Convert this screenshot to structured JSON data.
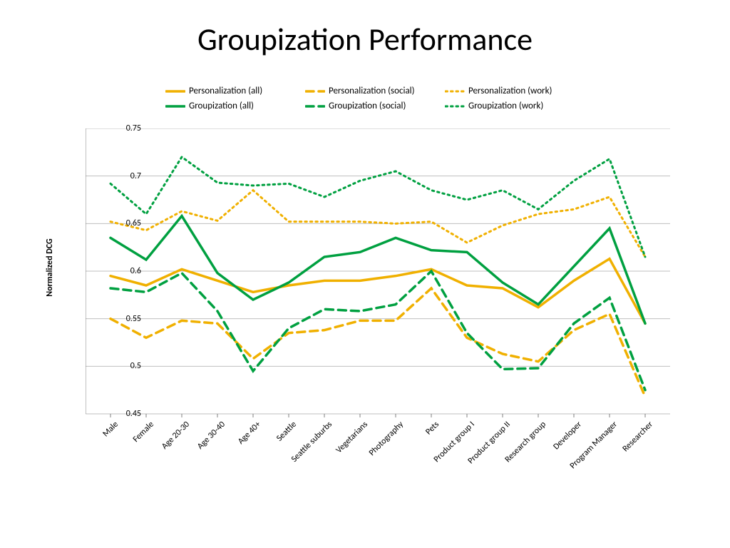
{
  "title": "Groupization Performance",
  "chart": {
    "type": "line",
    "ylabel": "Normalized DCG",
    "ylim": [
      0.45,
      0.75
    ],
    "ytick_step": 0.05,
    "yticks": [
      0.45,
      0.5,
      0.55,
      0.6,
      0.65,
      0.7,
      0.75
    ],
    "categories": [
      "Male",
      "Female",
      "Age 20-30",
      "Age 30-40",
      "Age 40+",
      "Seattle",
      "Seattle suburbs",
      "Vegetarians",
      "Photography",
      "Pets",
      "Product group I",
      "Product group II",
      "Research group",
      "Developer",
      "Program Manager",
      "Researcher"
    ],
    "background_color": "#ffffff",
    "grid_color": "#bfbfbf",
    "axis_color": "#808080",
    "label_fontsize": 12,
    "title_fontsize": 44,
    "legend_fontsize": 13,
    "series": [
      {
        "name": "Personalization (all)",
        "color": "#f0b000",
        "dash": "solid",
        "width": 3.5,
        "values": [
          0.595,
          0.585,
          0.602,
          0.59,
          0.578,
          0.585,
          0.59,
          0.59,
          0.595,
          0.602,
          0.585,
          0.582,
          0.562,
          0.59,
          0.613,
          0.545
        ]
      },
      {
        "name": "Personalization (social)",
        "color": "#f0b000",
        "dash": "dash",
        "width": 3.5,
        "values": [
          0.55,
          0.53,
          0.548,
          0.545,
          0.508,
          0.535,
          0.538,
          0.548,
          0.548,
          0.582,
          0.53,
          0.513,
          0.505,
          0.538,
          0.555,
          0.468
        ]
      },
      {
        "name": "Personalization (work)",
        "color": "#f0b000",
        "dash": "dot",
        "width": 3,
        "values": [
          0.652,
          0.643,
          0.663,
          0.653,
          0.685,
          0.652,
          0.652,
          0.652,
          0.65,
          0.652,
          0.63,
          0.648,
          0.66,
          0.665,
          0.678,
          0.615
        ]
      },
      {
        "name": "Groupization (all)",
        "color": "#00a040",
        "dash": "solid",
        "width": 3.5,
        "values": [
          0.635,
          0.612,
          0.658,
          0.598,
          0.57,
          0.588,
          0.615,
          0.62,
          0.635,
          0.622,
          0.62,
          0.588,
          0.565,
          0.605,
          0.645,
          0.545
        ]
      },
      {
        "name": "Groupization (social)",
        "color": "#00a040",
        "dash": "dash",
        "width": 3.5,
        "values": [
          0.582,
          0.578,
          0.598,
          0.558,
          0.495,
          0.54,
          0.56,
          0.558,
          0.565,
          0.6,
          0.535,
          0.497,
          0.498,
          0.545,
          0.572,
          0.475
        ]
      },
      {
        "name": "Groupization (work)",
        "color": "#00a040",
        "dash": "dot",
        "width": 3,
        "values": [
          0.692,
          0.66,
          0.72,
          0.693,
          0.69,
          0.692,
          0.678,
          0.695,
          0.705,
          0.685,
          0.675,
          0.685,
          0.665,
          0.695,
          0.718,
          0.615
        ]
      }
    ]
  }
}
